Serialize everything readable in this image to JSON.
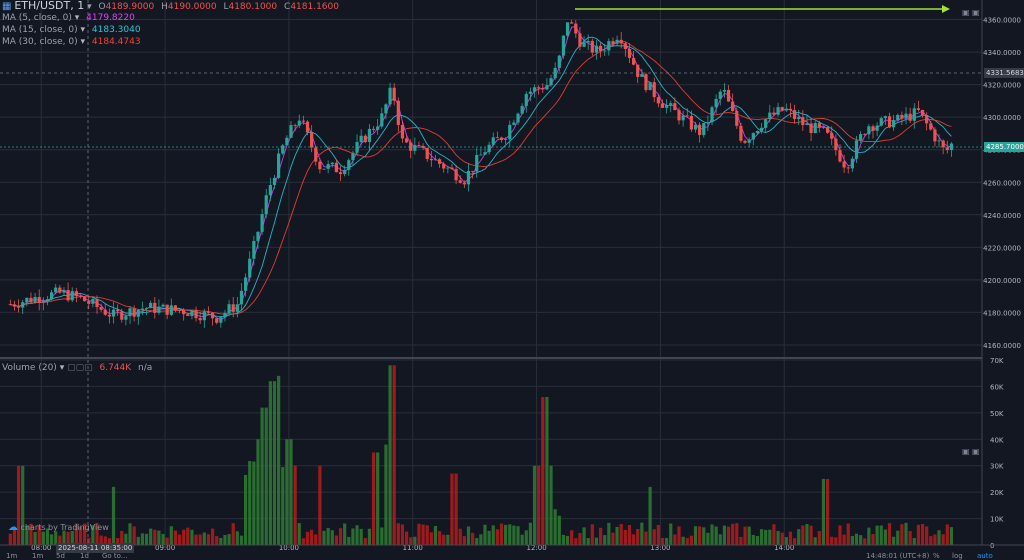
{
  "header": {
    "symbol": "ETH/USDT, 1",
    "open_label": "O",
    "open": "4189.9000",
    "high_label": "H",
    "high": "4190.0000",
    "low_label": "L",
    "low": "4180.1000",
    "close_label": "C",
    "close": "4181.1600"
  },
  "indicators": [
    {
      "label": "MA (5, close, 0)",
      "value": "4179.8220",
      "color": "#e040fb"
    },
    {
      "label": "MA (15, close, 0)",
      "value": "4183.3040",
      "color": "#26c6da"
    },
    {
      "label": "MA (30, close, 0)",
      "value": "4184.4743",
      "color": "#f44336"
    }
  ],
  "volume_pane": {
    "label": "Volume (20)",
    "value": "6.744K",
    "na": "n/a"
  },
  "price_badges": {
    "crosshair": "4331.5683",
    "last": "4285.7000"
  },
  "time_tooltip": "2025-08-11 08:35:00",
  "footer": {
    "ranges": [
      "1m",
      "1m",
      "5d",
      "1d",
      "Go to..."
    ],
    "clock": "14:48:01 (UTC+8)",
    "percent": "%",
    "log": "log",
    "auto": "auto"
  },
  "watermark": "charts by TradingView",
  "colors": {
    "up": "#26a69a",
    "down": "#ef5350",
    "bg": "#131722",
    "grid": "#2a2e39"
  },
  "chart_data": {
    "type": "candlestick",
    "interval": "1m",
    "price_axis": {
      "ticks": [
        "4160.0000",
        "4180.0000",
        "4200.0000",
        "4220.0000",
        "4240.0000",
        "4260.0000",
        "4280.0000",
        "4300.0000",
        "4320.0000",
        "4340.0000",
        "4360.0000"
      ],
      "range": [
        4152,
        4372
      ]
    },
    "volume_axis": {
      "ticks": [
        "0",
        "10K",
        "20K",
        "30K",
        "40K",
        "50K",
        "60K",
        "70K"
      ],
      "range": [
        0,
        70000
      ]
    },
    "time_axis": {
      "ticks": [
        "08:00",
        "09:00",
        "10:00",
        "11:00",
        "12:00",
        "13:00",
        "14:00"
      ]
    },
    "price_series": [
      {
        "t": "07:45",
        "p": 4185
      },
      {
        "t": "08:00",
        "p": 4190
      },
      {
        "t": "08:10",
        "p": 4192
      },
      {
        "t": "08:20",
        "p": 4188
      },
      {
        "t": "08:35",
        "p": 4178
      },
      {
        "t": "08:50",
        "p": 4183
      },
      {
        "t": "09:10",
        "p": 4181
      },
      {
        "t": "09:25",
        "p": 4177
      },
      {
        "t": "09:35",
        "p": 4185
      },
      {
        "t": "09:42",
        "p": 4215
      },
      {
        "t": "09:50",
        "p": 4255
      },
      {
        "t": "09:58",
        "p": 4285
      },
      {
        "t": "10:05",
        "p": 4300
      },
      {
        "t": "10:15",
        "p": 4270
      },
      {
        "t": "10:25",
        "p": 4268
      },
      {
        "t": "10:35",
        "p": 4285
      },
      {
        "t": "10:45",
        "p": 4300
      },
      {
        "t": "10:50",
        "p": 4318
      },
      {
        "t": "10:55",
        "p": 4285
      },
      {
        "t": "11:05",
        "p": 4278
      },
      {
        "t": "11:15",
        "p": 4270
      },
      {
        "t": "11:25",
        "p": 4262
      },
      {
        "t": "11:35",
        "p": 4280
      },
      {
        "t": "11:45",
        "p": 4290
      },
      {
        "t": "11:55",
        "p": 4315
      },
      {
        "t": "12:05",
        "p": 4320
      },
      {
        "t": "12:10",
        "p": 4330
      },
      {
        "t": "12:15",
        "p": 4360
      },
      {
        "t": "12:22",
        "p": 4345
      },
      {
        "t": "12:30",
        "p": 4340
      },
      {
        "t": "12:40",
        "p": 4352
      },
      {
        "t": "12:50",
        "p": 4325
      },
      {
        "t": "13:00",
        "p": 4310
      },
      {
        "t": "13:10",
        "p": 4300
      },
      {
        "t": "13:20",
        "p": 4290
      },
      {
        "t": "13:30",
        "p": 4318
      },
      {
        "t": "13:40",
        "p": 4285
      },
      {
        "t": "13:50",
        "p": 4298
      },
      {
        "t": "14:00",
        "p": 4305
      },
      {
        "t": "14:10",
        "p": 4295
      },
      {
        "t": "14:20",
        "p": 4290
      },
      {
        "t": "14:30",
        "p": 4270
      },
      {
        "t": "14:40",
        "p": 4295
      },
      {
        "t": "14:55",
        "p": 4298
      },
      {
        "t": "15:05",
        "p": 4303
      },
      {
        "t": "15:12",
        "p": 4290
      },
      {
        "t": "15:18",
        "p": 4278
      },
      {
        "t": "15:22",
        "p": 4285
      }
    ],
    "moving_averages": [
      {
        "name": "MA (5, close, 0)",
        "period": 5
      },
      {
        "name": "MA (15, close, 0)",
        "period": 15
      },
      {
        "name": "MA (30, close, 0)",
        "period": 30
      }
    ],
    "volume_spikes": [
      {
        "t": "07:50",
        "v": 30000
      },
      {
        "t": "08:35",
        "v": 22000
      },
      {
        "t": "09:40",
        "v": 25000
      },
      {
        "t": "09:45",
        "v": 40000
      },
      {
        "t": "09:48",
        "v": 52000
      },
      {
        "t": "09:52",
        "v": 62000
      },
      {
        "t": "09:55",
        "v": 64000
      },
      {
        "t": "10:00",
        "v": 40000
      },
      {
        "t": "10:15",
        "v": 30000
      },
      {
        "t": "10:42",
        "v": 35000
      },
      {
        "t": "10:47",
        "v": 38000
      },
      {
        "t": "10:50",
        "v": 68000
      },
      {
        "t": "11:20",
        "v": 27000
      },
      {
        "t": "12:00",
        "v": 30000
      },
      {
        "t": "12:04",
        "v": 56000
      },
      {
        "t": "12:07",
        "v": 30000
      },
      {
        "t": "12:55",
        "v": 22000
      },
      {
        "t": "14:20",
        "v": 25000
      }
    ]
  }
}
